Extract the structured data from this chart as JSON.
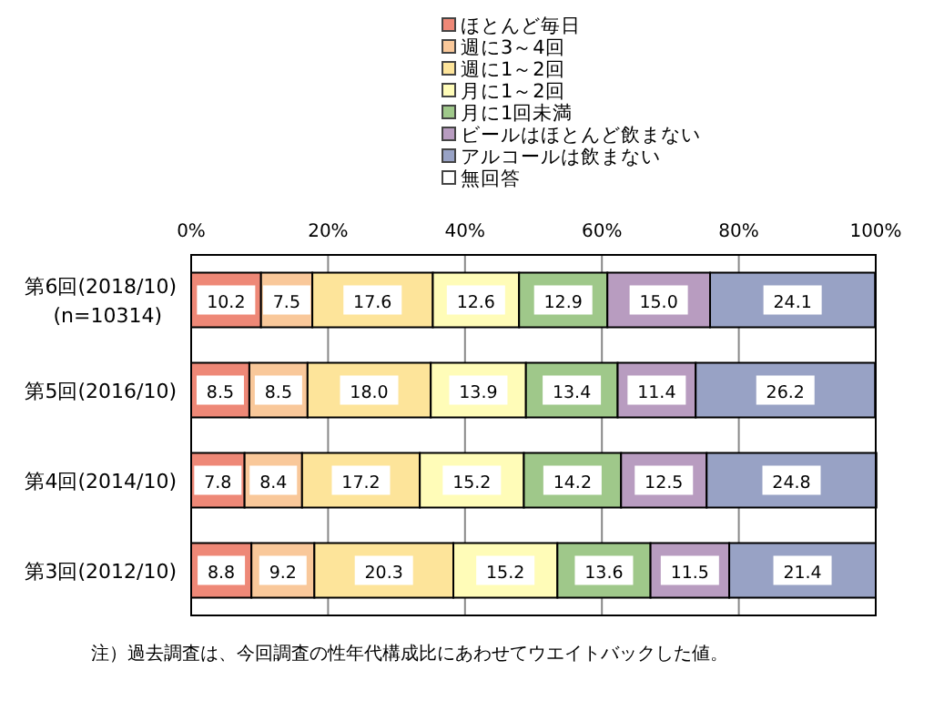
{
  "chart_data": {
    "type": "bar",
    "orientation": "horizontal",
    "stacked": true,
    "categories": [
      "第6回(2018/10)\n(n=10314)",
      "第5回(2016/10)",
      "第4回(2014/10)",
      "第3回(2012/10)"
    ],
    "series": [
      {
        "name": "ほとんど毎日",
        "color": "#ee8877",
        "values": [
          10.2,
          8.5,
          7.8,
          8.8
        ],
        "value_labels": [
          "10.2",
          "8.5",
          "7.8",
          "8.8"
        ]
      },
      {
        "name": "週に3～4回",
        "color": "#f9c89a",
        "values": [
          7.5,
          8.5,
          8.4,
          9.2
        ],
        "value_labels": [
          "7.5",
          "8.5",
          "8.4",
          "9.2"
        ]
      },
      {
        "name": "週に1～2回",
        "color": "#fde49a",
        "values": [
          17.6,
          18.0,
          17.2,
          20.3
        ],
        "value_labels": [
          "17.6",
          "18.0",
          "17.2",
          "20.3"
        ]
      },
      {
        "name": "月に1～2回",
        "color": "#fffcb8",
        "values": [
          12.6,
          13.9,
          15.2,
          15.2
        ],
        "value_labels": [
          "12.6",
          "13.9",
          "15.2",
          "15.2"
        ]
      },
      {
        "name": "月に1回未満",
        "color": "#9fc88a",
        "values": [
          12.9,
          13.4,
          14.2,
          13.6
        ],
        "value_labels": [
          "12.9",
          "13.4",
          "14.2",
          "13.6"
        ]
      },
      {
        "name": "ビールはほとんど飲まない",
        "color": "#b89cc0",
        "values": [
          15.0,
          11.4,
          12.5,
          11.5
        ],
        "value_labels": [
          "15.0",
          "11.4",
          "12.5",
          "11.5"
        ]
      },
      {
        "name": "アルコールは飲まない",
        "color": "#98a2c5",
        "values": [
          24.1,
          26.2,
          24.8,
          21.4
        ],
        "value_labels": [
          "24.1",
          "26.2",
          "24.8",
          "21.4"
        ]
      },
      {
        "name": "無回答",
        "color": "#ffffff",
        "values": [
          null,
          null,
          null,
          null
        ]
      }
    ],
    "xlim": [
      0,
      100
    ],
    "xticks": [
      {
        "value": 0,
        "label": "0%"
      },
      {
        "value": 20,
        "label": "20%"
      },
      {
        "value": 40,
        "label": "40%"
      },
      {
        "value": 60,
        "label": "60%"
      },
      {
        "value": 80,
        "label": "80%"
      },
      {
        "value": 100,
        "label": "100%"
      }
    ],
    "grid": "x",
    "legend": "top",
    "annotations": [
      "注）過去調査は、今回調査の性年代構成比にあわせてウエイトバックした値。"
    ]
  }
}
